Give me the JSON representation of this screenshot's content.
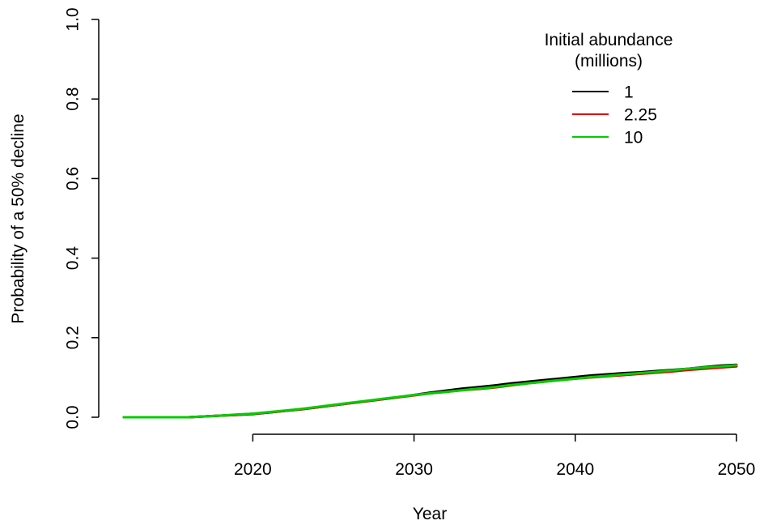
{
  "chart_data": {
    "type": "line",
    "title": "",
    "xlabel": "Year",
    "ylabel": "Probability of a 50% decline",
    "xlim": [
      2012,
      2050
    ],
    "ylim": [
      0,
      1
    ],
    "x_ticks": [
      2020,
      2030,
      2040,
      2050
    ],
    "x_tick_labels": [
      "2020",
      "2030",
      "2040",
      "2050"
    ],
    "y_ticks": [
      0,
      0.2,
      0.4,
      0.6,
      0.8,
      1
    ],
    "y_tick_labels": [
      "0.0",
      "0.2",
      "0.4",
      "0.6",
      "0.8",
      "1.0"
    ],
    "grid": false,
    "legend": {
      "title_line1": "Initial abundance",
      "title_line2": "(millions)",
      "position": "top-right"
    },
    "x": [
      2012,
      2013,
      2014,
      2015,
      2016,
      2017,
      2018,
      2019,
      2020,
      2021,
      2022,
      2023,
      2024,
      2025,
      2026,
      2027,
      2028,
      2029,
      2030,
      2031,
      2032,
      2033,
      2034,
      2035,
      2036,
      2037,
      2038,
      2039,
      2040,
      2041,
      2042,
      2043,
      2044,
      2045,
      2046,
      2047,
      2048,
      2049,
      2050
    ],
    "series": [
      {
        "name": "1",
        "color": "#000000",
        "values": [
          0,
          0,
          0,
          0,
          0,
          0.002,
          0.004,
          0.006,
          0.008,
          0.012,
          0.016,
          0.02,
          0.025,
          0.03,
          0.035,
          0.04,
          0.045,
          0.05,
          0.056,
          0.062,
          0.067,
          0.072,
          0.076,
          0.08,
          0.085,
          0.089,
          0.093,
          0.097,
          0.101,
          0.105,
          0.108,
          0.111,
          0.113,
          0.116,
          0.119,
          0.122,
          0.126,
          0.13,
          0.132
        ]
      },
      {
        "name": "2.25",
        "color": "#e00000",
        "values": [
          0,
          0,
          0,
          0,
          0,
          0.002,
          0.004,
          0.006,
          0.009,
          0.012,
          0.016,
          0.02,
          0.025,
          0.03,
          0.035,
          0.04,
          0.045,
          0.05,
          0.055,
          0.06,
          0.064,
          0.068,
          0.071,
          0.075,
          0.08,
          0.085,
          0.089,
          0.093,
          0.097,
          0.1,
          0.103,
          0.106,
          0.109,
          0.112,
          0.115,
          0.119,
          0.122,
          0.125,
          0.128
        ]
      },
      {
        "name": "10",
        "color": "#00cc00",
        "values": [
          0,
          0,
          0,
          0,
          0,
          0.002,
          0.004,
          0.007,
          0.009,
          0.013,
          0.017,
          0.021,
          0.026,
          0.031,
          0.036,
          0.041,
          0.046,
          0.051,
          0.056,
          0.06,
          0.064,
          0.068,
          0.072,
          0.076,
          0.081,
          0.085,
          0.089,
          0.093,
          0.097,
          0.101,
          0.104,
          0.108,
          0.111,
          0.114,
          0.118,
          0.122,
          0.125,
          0.128,
          0.131
        ]
      }
    ]
  }
}
